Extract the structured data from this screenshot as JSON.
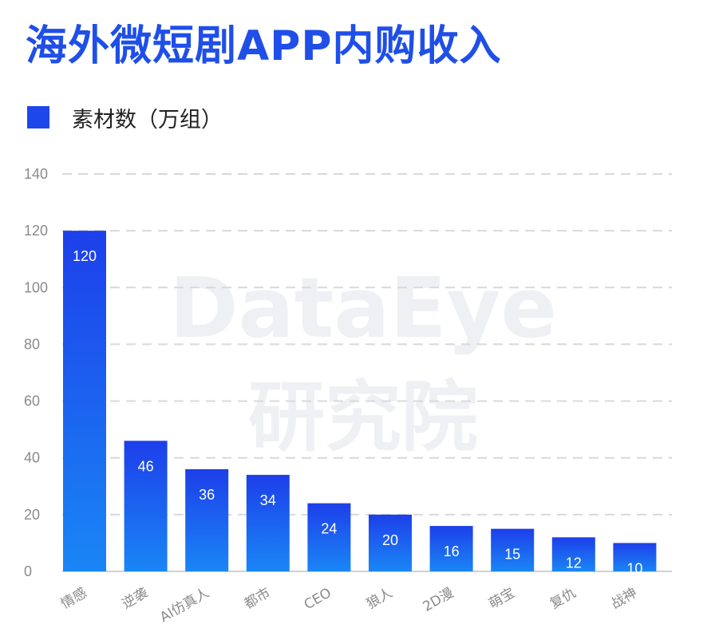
{
  "chart_data": {
    "type": "bar",
    "title": "海外微短剧APP内购收入",
    "legend": [
      "素材数（万组）"
    ],
    "legend_placement": "top-left",
    "categories": [
      "情感",
      "逆袭",
      "AI仿真人",
      "都市",
      "CEO",
      "狼人",
      "2D漫",
      "萌宝",
      "复仇",
      "战神"
    ],
    "series": [
      {
        "name": "素材数（万组）",
        "values": [
          120,
          46,
          36,
          34,
          24,
          20,
          16,
          15,
          12,
          10
        ]
      }
    ],
    "data_labels": [
      "120",
      "46",
      "36",
      "34",
      "24",
      "20",
      "16",
      "15",
      "12",
      "10"
    ],
    "ylim": [
      0,
      140
    ],
    "yticks": [
      0,
      20,
      40,
      60,
      80,
      100,
      120,
      140
    ],
    "grid": true,
    "xlabel": "",
    "ylabel": ""
  },
  "watermark": {
    "line1": "DataEye",
    "line2": "研究院"
  },
  "colors": {
    "title": "#1f4fe8",
    "bar_top": "#1d3fea",
    "bar_bottom": "#1a86f5",
    "legend_swatch": "#1d47ea"
  }
}
